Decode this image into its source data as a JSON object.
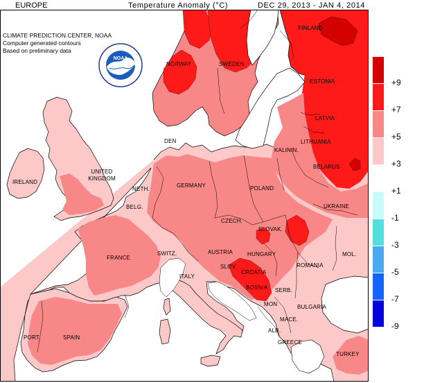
{
  "header": {
    "region": "EUROPE",
    "title": "Temperature Anomaly (°C)",
    "dates": "DEC 29, 2013 - JAN 4, 2014"
  },
  "credits": [
    "CLIMATE PREDICTION CENTER, NOAA",
    "Computer generated contours",
    "Based on preliminary data"
  ],
  "logo": {
    "icon": "noaa-logo-icon",
    "text": "NOAA"
  },
  "countries": {
    "finland": "FINLAND",
    "norway": "NORWAY",
    "sweden": "SWEDEN",
    "estonia": "ESTONIA",
    "latvia": "LATVIA",
    "lithuania": "LITHUANIA",
    "denmark": "DEN",
    "kaliningrad": "KALININ.",
    "belarus": "BELARUS",
    "uk": "UNITED KINGDOM",
    "ireland": "IRELAND",
    "netherlands": "NETH.",
    "belgium": "BELG.",
    "germany": "GERMANY",
    "poland": "POLAND",
    "ukraine": "UKRAINE",
    "czech": "CZECH.",
    "slovakia": "SLOVAK.",
    "france": "FRANCE",
    "switzerland": "SWITZ.",
    "austria": "AUSTRIA",
    "hungary": "HUNGARY",
    "moldova": "MOL.",
    "slovenia": "SLOV.",
    "croatia": "CROATIA",
    "romania": "ROMANIA",
    "italy": "ITALY",
    "bosnia": "BOSNIA",
    "serbia": "SERB.",
    "montenegro": "MON",
    "bulgaria": "BULGARIA",
    "macedonia": "MACE.",
    "albania": "ALB.",
    "portugal": "PORT.",
    "spain": "SPAIN",
    "greece": "GREECE",
    "turkey": "TURKEY"
  },
  "legend": {
    "colors": [
      "#d40000",
      "#ff1a1a",
      "#f88888",
      "#fdc8c8",
      "#ffffff",
      "#c8fbfb",
      "#55dede",
      "#4aa8f0",
      "#1464ff",
      "#0000dd"
    ],
    "labels": [
      "+9",
      "+7",
      "+5",
      "+3",
      "+1",
      "-1",
      "-3",
      "-5",
      "-7",
      "-9"
    ]
  }
}
